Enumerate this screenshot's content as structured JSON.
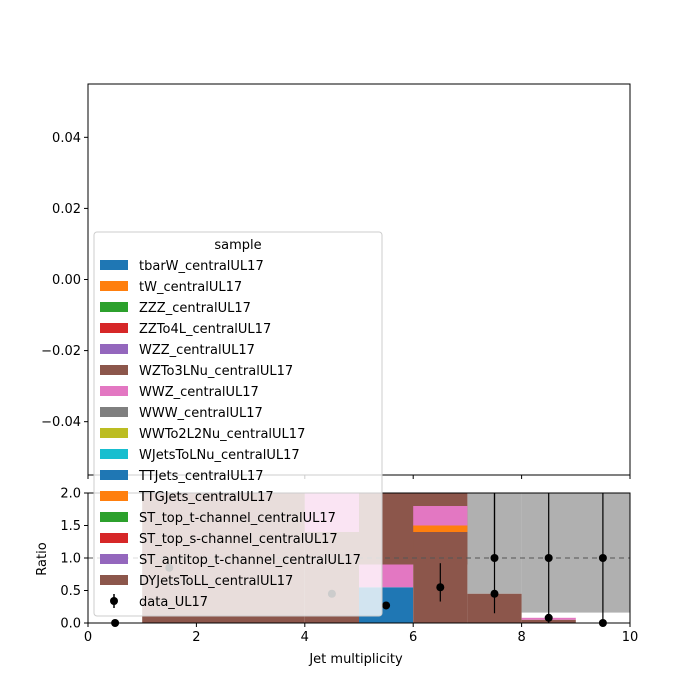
{
  "chart_data": [
    {
      "type": "area",
      "ylim": [
        -0.055,
        0.055
      ],
      "yticks": [
        "0.04",
        "0.02",
        "0.00",
        "−0.02",
        "−0.04"
      ],
      "ytick_values": [
        0.04,
        0.02,
        0.0,
        -0.02,
        -0.04
      ],
      "xlim": [
        0,
        10
      ],
      "legend": {
        "title": "sample",
        "placement": "center-left",
        "entries": [
          {
            "label": "tbarW_centralUL17",
            "color": "#1f77b4",
            "kind": "patch"
          },
          {
            "label": "tW_centralUL17",
            "color": "#ff7f0e",
            "kind": "patch"
          },
          {
            "label": "ZZZ_centralUL17",
            "color": "#2ca02c",
            "kind": "patch"
          },
          {
            "label": "ZZTo4L_centralUL17",
            "color": "#d62728",
            "kind": "patch"
          },
          {
            "label": "WZZ_centralUL17",
            "color": "#9467bd",
            "kind": "patch"
          },
          {
            "label": "WZTo3LNu_centralUL17",
            "color": "#8c564b",
            "kind": "patch"
          },
          {
            "label": "WWZ_centralUL17",
            "color": "#e377c2",
            "kind": "patch"
          },
          {
            "label": "WWW_centralUL17",
            "color": "#7f7f7f",
            "kind": "patch"
          },
          {
            "label": "WWTo2L2Nu_centralUL17",
            "color": "#bcbd22",
            "kind": "patch"
          },
          {
            "label": "WJetsToLNu_centralUL17",
            "color": "#17becf",
            "kind": "patch"
          },
          {
            "label": "TTJets_centralUL17",
            "color": "#1f77b4",
            "kind": "patch"
          },
          {
            "label": "TTGJets_centralUL17",
            "color": "#ff7f0e",
            "kind": "patch"
          },
          {
            "label": "ST_top_t-channel_centralUL17",
            "color": "#2ca02c",
            "kind": "patch"
          },
          {
            "label": "ST_top_s-channel_centralUL17",
            "color": "#d62728",
            "kind": "patch"
          },
          {
            "label": "ST_antitop_t-channel_centralUL17",
            "color": "#9467bd",
            "kind": "patch"
          },
          {
            "label": "DYJetsToLL_centralUL17",
            "color": "#8c564b",
            "kind": "patch"
          },
          {
            "label": "data_UL17",
            "color": "#000000",
            "kind": "errorbar"
          }
        ]
      }
    },
    {
      "type": "bar",
      "xlabel": "Jet multiplicity",
      "ylabel": "Ratio",
      "xlim": [
        0,
        10
      ],
      "ylim": [
        0,
        2.0
      ],
      "xticks": [
        "0",
        "2",
        "4",
        "6",
        "8",
        "10"
      ],
      "xtick_values": [
        0,
        2,
        4,
        6,
        8,
        10
      ],
      "yticks": [
        "0.0",
        "0.5",
        "1.0",
        "1.5",
        "2.0"
      ],
      "ytick_values": [
        0.0,
        0.5,
        1.0,
        1.5,
        2.0
      ],
      "reference_line": 1.0,
      "bars": [
        {
          "x0": 1,
          "x1": 4,
          "y0": 0,
          "y1": 2.0,
          "color": "#8c564b"
        },
        {
          "x0": 4,
          "x1": 5,
          "y0": 0,
          "y1": 2.0,
          "color": "#8c564b"
        },
        {
          "x0": 4,
          "x1": 5,
          "y0": 1.4,
          "y1": 2.0,
          "color": "#e377c2"
        },
        {
          "x0": 5,
          "x1": 6,
          "y0": 0,
          "y1": 0.55,
          "color": "#1f77b4"
        },
        {
          "x0": 5,
          "x1": 6,
          "y0": 0.55,
          "y1": 0.9,
          "color": "#e377c2"
        },
        {
          "x0": 5,
          "x1": 7,
          "y0": 0.9,
          "y1": 2.0,
          "color": "#8c564b"
        },
        {
          "x0": 6,
          "x1": 7,
          "y0": 0,
          "y1": 1.4,
          "color": "#8c564b"
        },
        {
          "x0": 6,
          "x1": 7,
          "y0": 1.4,
          "y1": 1.5,
          "color": "#ff7f0e"
        },
        {
          "x0": 6,
          "x1": 7,
          "y0": 1.5,
          "y1": 1.8,
          "color": "#e377c2"
        },
        {
          "x0": 7,
          "x1": 8,
          "y0": 0,
          "y1": 0.45,
          "color": "#8c564b"
        },
        {
          "x0": 8,
          "x1": 9,
          "y0": 0,
          "y1": 0.05,
          "color": "#8c564b"
        },
        {
          "x0": 8,
          "x1": 9,
          "y0": 0.05,
          "y1": 0.08,
          "color": "#e377c2"
        }
      ],
      "uncertainty_bands": [
        {
          "x0": 7,
          "x1": 8,
          "y0": 0.45,
          "y1": 2.0
        },
        {
          "x0": 8,
          "x1": 10,
          "y0": 0.16,
          "y1": 2.0
        }
      ],
      "points": [
        {
          "x": 0.5,
          "y": 0.0,
          "err_low": 0.0,
          "err_high": 0.0
        },
        {
          "x": 1.5,
          "y": 0.85,
          "err_low": 0.0,
          "err_high": 0.0
        },
        {
          "x": 4.5,
          "y": 0.45,
          "err_low": 0.0,
          "err_high": 0.0
        },
        {
          "x": 5.5,
          "y": 0.27,
          "err_low": 0.05,
          "err_high": 0.05
        },
        {
          "x": 6.5,
          "y": 0.55,
          "err_low": 0.22,
          "err_high": 0.37
        },
        {
          "x": 7.5,
          "y": 0.45,
          "err_low": 0.3,
          "err_high": 1.55
        },
        {
          "x": 7.5,
          "y": 1.0,
          "err_low": 0.0,
          "err_high": 1.0
        },
        {
          "x": 8.5,
          "y": 0.08,
          "err_low": 0.08,
          "err_high": 1.92
        },
        {
          "x": 8.5,
          "y": 1.0,
          "err_low": 0.0,
          "err_high": 0.0
        },
        {
          "x": 9.5,
          "y": 0.0,
          "err_low": 0.0,
          "err_high": 2.0
        },
        {
          "x": 9.5,
          "y": 1.0,
          "err_low": 0.0,
          "err_high": 0.0
        }
      ]
    }
  ]
}
